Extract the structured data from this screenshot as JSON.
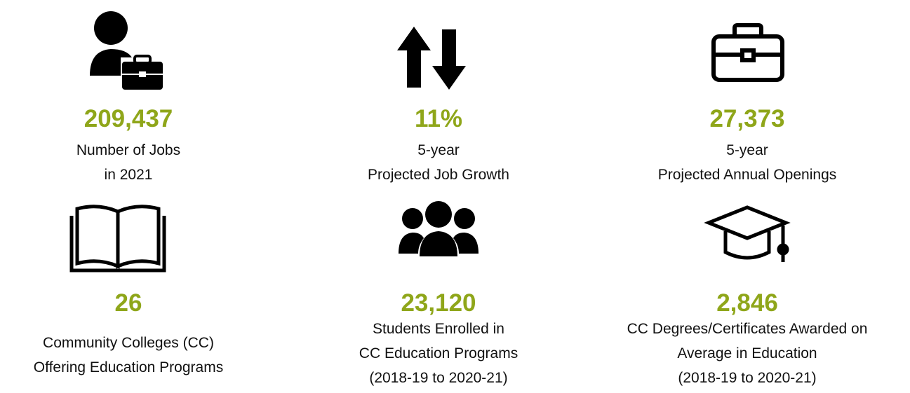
{
  "stats": [
    {
      "value": "209,437",
      "lines": [
        "Number of Jobs",
        "in 2021"
      ]
    },
    {
      "value": "11%",
      "lines": [
        "5-year",
        "Projected Job Growth"
      ]
    },
    {
      "value": "27,373",
      "lines": [
        "5-year",
        "Projected Annual Openings"
      ]
    },
    {
      "value": "26",
      "lines": [
        "Community Colleges (CC)",
        "Offering Education Programs"
      ]
    },
    {
      "value": "23,120",
      "lines": [
        "Students Enrolled in",
        "CC Education Programs",
        "(2018-19 to 2020-21)"
      ]
    },
    {
      "value": "2,846",
      "lines": [
        "CC Degrees/Certificates Awarded on",
        "Average in Education",
        "(2018-19 to 2020-21)"
      ]
    }
  ]
}
